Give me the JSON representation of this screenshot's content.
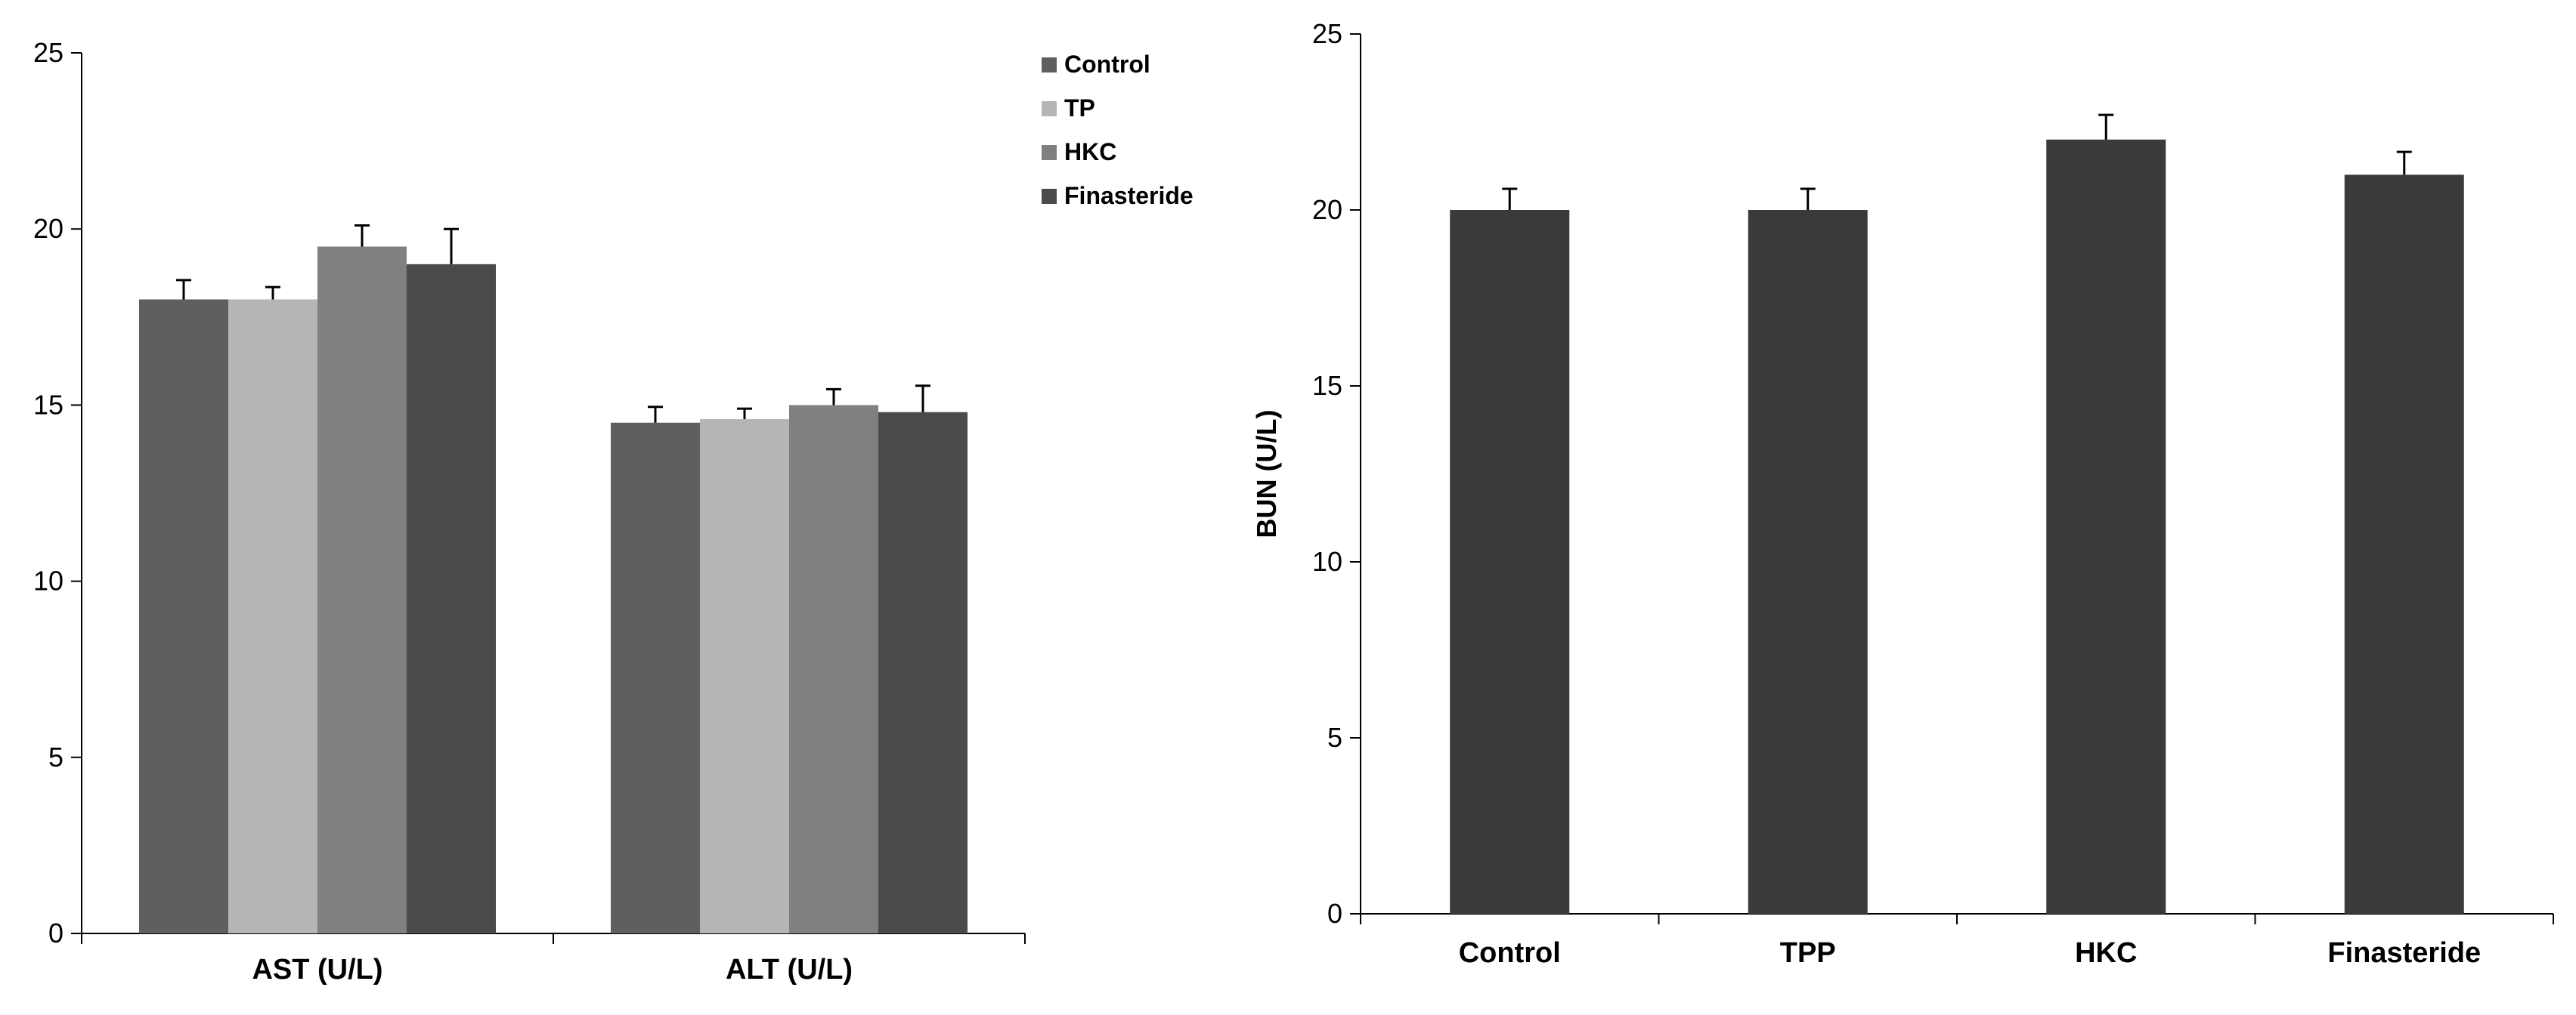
{
  "chart_data": [
    {
      "type": "bar",
      "title": "",
      "xlabel": "",
      "ylabel": "",
      "ylim": [
        0,
        25
      ],
      "yticks": [
        0,
        5,
        10,
        15,
        20,
        25
      ],
      "categories": [
        "AST (U/L)",
        "ALT (U/L)"
      ],
      "legend": {
        "placement": "top-right"
      },
      "series": [
        {
          "name": "Control",
          "color": "#5f5f5f",
          "values": [
            18.0,
            14.5
          ],
          "errors": [
            0.55,
            0.45
          ]
        },
        {
          "name": "TP",
          "color": "#b5b5b5",
          "values": [
            18.0,
            14.6
          ],
          "errors": [
            0.35,
            0.3
          ]
        },
        {
          "name": "HKC",
          "color": "#808080",
          "values": [
            19.5,
            15.0
          ],
          "errors": [
            0.6,
            0.45
          ]
        },
        {
          "name": "Finasteride",
          "color": "#4a4a4a",
          "values": [
            19.0,
            14.8
          ],
          "errors": [
            1.0,
            0.75
          ]
        }
      ]
    },
    {
      "type": "bar",
      "title": "",
      "xlabel": "",
      "ylabel": "BUN (U/L)",
      "ylim": [
        0,
        25
      ],
      "yticks": [
        0,
        5,
        10,
        15,
        20,
        25
      ],
      "categories": [
        "Control",
        "TPP",
        "HKC",
        "Finasteride"
      ],
      "color": "#3a3a3a",
      "values": [
        20.0,
        20.0,
        22.0,
        21.0
      ],
      "errors": [
        0.6,
        0.6,
        0.7,
        0.65
      ]
    }
  ]
}
